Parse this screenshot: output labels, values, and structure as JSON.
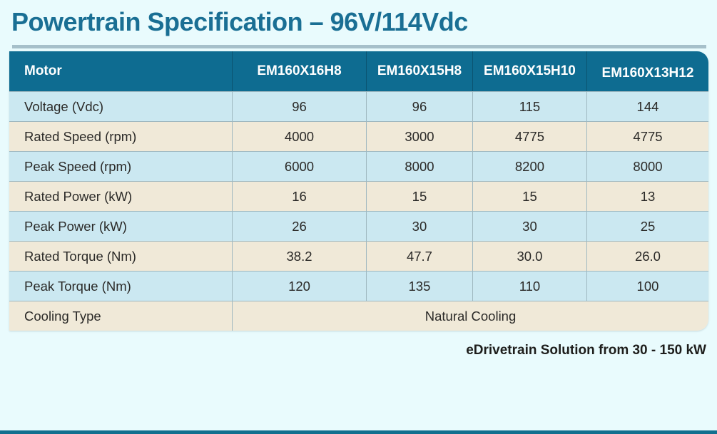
{
  "page": {
    "title": "Powertrain Specification – 96V/114Vdc",
    "footnote": "eDrivetrain Solution from 30 - 150 kW"
  },
  "table": {
    "header": {
      "label": "Motor",
      "columns": [
        "EM160X16H8",
        "EM160X15H8",
        "EM160X15H10",
        "EM160X13H12"
      ]
    },
    "rows": [
      {
        "label": "Voltage (Vdc)",
        "values": [
          "96",
          "96",
          "115",
          "144"
        ]
      },
      {
        "label": "Rated Speed (rpm)",
        "values": [
          "4000",
          "3000",
          "4775",
          "4775"
        ]
      },
      {
        "label": "Peak Speed (rpm)",
        "values": [
          "6000",
          "8000",
          "8200",
          "8000"
        ]
      },
      {
        "label": "Rated Power (kW)",
        "values": [
          "16",
          "15",
          "15",
          "13"
        ]
      },
      {
        "label": "Peak Power (kW)",
        "values": [
          "26",
          "30",
          "30",
          "25"
        ]
      },
      {
        "label": "Rated Torque (Nm)",
        "values": [
          "38.2",
          "47.7",
          "30.0",
          "26.0"
        ]
      },
      {
        "label": "Peak Torque (Nm)",
        "values": [
          "120",
          "135",
          "110",
          "100"
        ]
      },
      {
        "label": "Cooling Type",
        "values": [
          "Natural Cooling"
        ],
        "span": true
      }
    ],
    "column_widths_pct": [
      31.84,
      19.18,
      15.2,
      16.33,
      17.45
    ]
  },
  "colors": {
    "background": "#e9fbfd",
    "title_text": "#1a6f94",
    "divider": "#a6c0ca",
    "header_bg": "#0e6c91",
    "header_text": "#ffffff",
    "row_blue": "#cbe8f1",
    "row_cream": "#f0e9d8",
    "cell_text": "#2b2a28",
    "grid_line": "#9fb8c0",
    "bottom_bar": "#11708f"
  }
}
